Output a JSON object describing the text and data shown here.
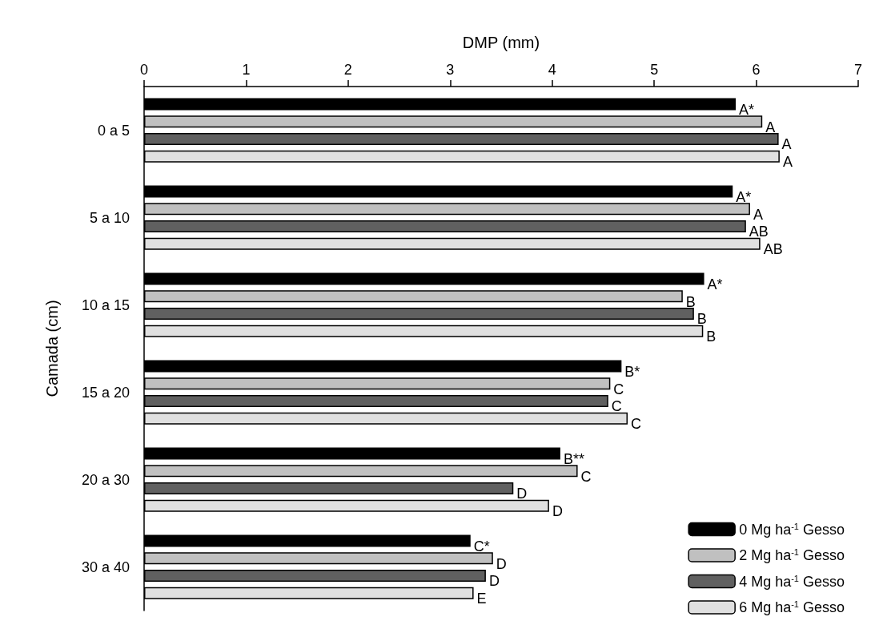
{
  "chart_data": {
    "type": "bar",
    "orientation": "horizontal",
    "xlabel": "DMP (mm)",
    "ylabel": "Camada (cm)",
    "categories": [
      "0 a 5",
      "5 a 10",
      "10 a 15",
      "15 a 20",
      "20 a 30",
      "30 a 40"
    ],
    "xlim": [
      0,
      7
    ],
    "xticks": [
      0,
      1,
      2,
      3,
      4,
      5,
      6,
      7
    ],
    "grid": false,
    "legend": "bottom right",
    "series": [
      {
        "name": "0 Mg ha$^{-1}$ Gesso",
        "color": "#000000",
        "values": [
          5.8,
          5.77,
          5.49,
          4.68,
          4.08,
          3.2
        ],
        "value_labels": [
          "A*",
          "A*",
          "A*",
          "B*",
          "B**",
          "C*"
        ]
      },
      {
        "name": "2 Mg ha$^{-1}$ Gesso",
        "color": "#c0c0c0",
        "values": [
          6.06,
          5.94,
          5.28,
          4.57,
          4.25,
          3.42
        ],
        "value_labels": [
          "A",
          "A",
          "B",
          "C",
          "C",
          "D"
        ]
      },
      {
        "name": "4 Mg ha$^{-1}$ Gesso",
        "color": "#606060",
        "values": [
          6.22,
          5.9,
          5.39,
          4.55,
          3.62,
          3.35
        ],
        "value_labels": [
          "A",
          "AB",
          "B",
          "C",
          "D",
          "D"
        ]
      },
      {
        "name": "6 Mg ha$^{-1}$ Gesso",
        "color": "#e0e0e0",
        "values": [
          6.23,
          6.04,
          5.48,
          4.74,
          3.97,
          3.23
        ],
        "value_labels": [
          "A",
          "AB",
          "B",
          "C",
          "D",
          "E"
        ]
      }
    ]
  }
}
